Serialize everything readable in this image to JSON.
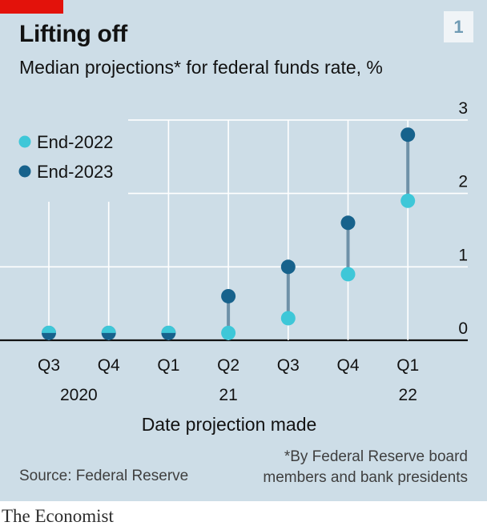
{
  "title": "Lifting off",
  "subtitle": "Median projections* for federal funds rate, %",
  "badge": "1",
  "source": "Source: Federal Reserve",
  "footnote": [
    "*By Federal Reserve board",
    "members and bank presidents"
  ],
  "brand": "The Economist",
  "colors": {
    "end2022": "#3ec7d8",
    "end2023": "#17628c",
    "connector": "#6e91a8",
    "panel": "#cddde7",
    "accent": "#e3120b"
  },
  "chart_data": {
    "type": "scatter",
    "categories": [
      "Q3",
      "Q4",
      "Q1",
      "Q2",
      "Q3",
      "Q4",
      "Q1"
    ],
    "year_labels": [
      {
        "label": "2020",
        "index": 0.5
      },
      {
        "label": "21",
        "index": 3
      },
      {
        "label": "22",
        "index": 6
      }
    ],
    "xlabel": "Date projection made",
    "ylim": [
      0,
      3
    ],
    "yticks": [
      0,
      1,
      2,
      3
    ],
    "legend_position": "top-left",
    "series": [
      {
        "name": "End-2022",
        "values": [
          0.1,
          0.1,
          0.1,
          0.1,
          0.3,
          0.9,
          1.9
        ]
      },
      {
        "name": "End-2023",
        "values": [
          0.1,
          0.1,
          0.1,
          0.6,
          1.0,
          1.6,
          2.8
        ]
      }
    ]
  }
}
